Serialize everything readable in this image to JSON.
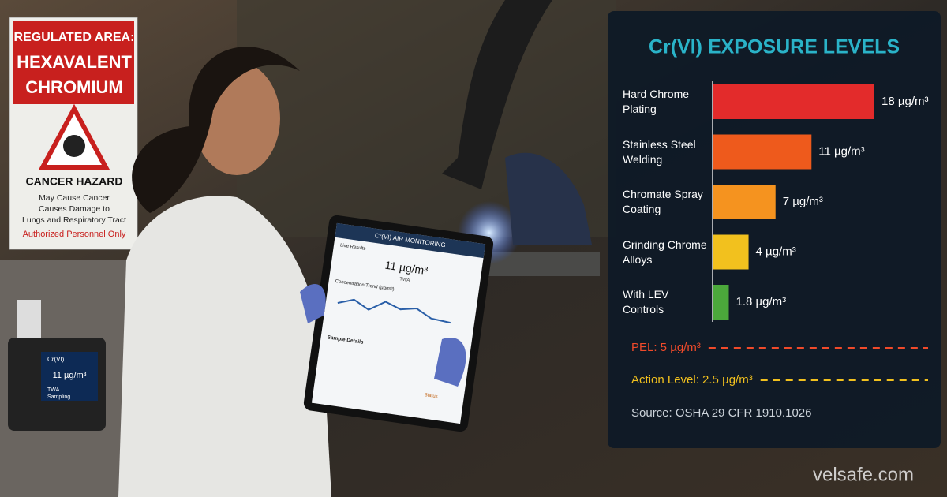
{
  "chart_data": {
    "type": "bar",
    "orientation": "horizontal",
    "title": "Cr(VI) EXPOSURE LEVELS",
    "categories": [
      "Hard Chrome Plating",
      "Stainless Steel Welding",
      "Chromate Spray Coating",
      "Grinding Chrome Alloys",
      "With LEV Controls"
    ],
    "values": [
      18,
      11,
      7,
      4,
      1.8
    ],
    "value_labels": [
      "18 µg/m³",
      "11 µg/m³",
      "7 µg/m³",
      "4 µg/m³",
      "1.8 µg/m³"
    ],
    "colors": [
      "#e32b2b",
      "#ee5a1c",
      "#f5931f",
      "#f2c11e",
      "#4ba83b"
    ],
    "reference_lines": [
      {
        "label": "PEL: 5 µg/m³",
        "color": "#f04a2a"
      },
      {
        "label": "Action Level: 2.5 µg/m³",
        "color": "#f2c11e"
      }
    ],
    "source": "Source: OSHA 29 CFR 1910.1026"
  },
  "sign": {
    "title_lines": [
      "REGULATED AREA:",
      "HEXAVALENT",
      "CHROMIUM"
    ],
    "hazard": "CANCER HAZARD",
    "warning_lines": [
      "May Cause Cancer",
      "Causes Damage to",
      "Lungs and Respiratory Tract"
    ],
    "footer": "Authorized Personnel Only"
  },
  "tablet": {
    "header": "Cr(VI) AIR MONITORING",
    "section": "Live Results",
    "reading": "11 µg/m³",
    "reading_note": "TWA",
    "trend_label": "Concentration Trend (µg/m³)",
    "details": "Sample Details",
    "status": "Status"
  },
  "monitor": {
    "name": "Cr(VI)",
    "reading": "11 µg/m³",
    "note": "TWA",
    "state": "Sampling"
  },
  "watermark": "velsafe.com"
}
